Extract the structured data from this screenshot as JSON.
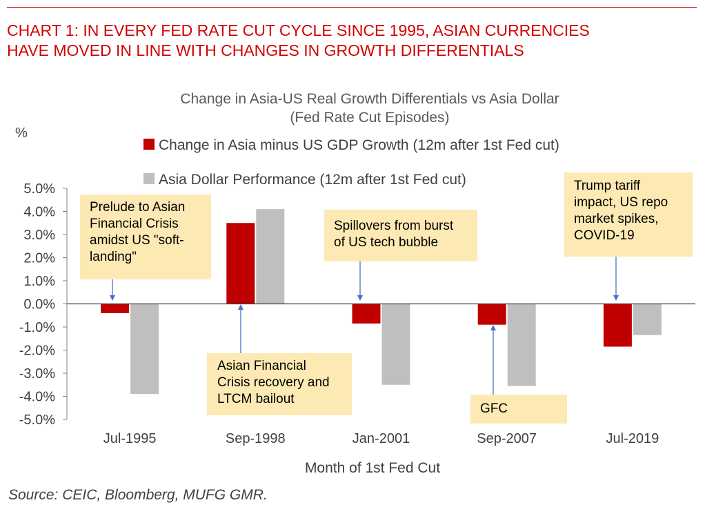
{
  "header": {
    "line1": "CHART 1: IN EVERY FED RATE CUT CYCLE SINCE 1995, ASIAN CURRENCIES",
    "line2": "HAVE MOVED IN LINE WITH CHANGES IN GROWTH DIFFERENTIALS"
  },
  "source": "Source: CEIC, Bloomberg, MUFG GMR.",
  "colors": {
    "headline": "#d40000",
    "series_gdp": "#c00000",
    "series_fx": "#bfbfbf",
    "callout": "#fde9b3"
  },
  "chart_data": {
    "type": "bar",
    "title": "Change in Asia-US Real Growth Differentials vs Asia Dollar",
    "subtitle": "(Fed Rate Cut Episodes)",
    "ylabel": "%",
    "xlabel": "Month of 1st Fed Cut",
    "ylim": [
      -5,
      5
    ],
    "yticks": [
      "5.0%",
      "4.0%",
      "3.0%",
      "2.0%",
      "1.0%",
      "0.0%",
      "-1.0%",
      "-2.0%",
      "-3.0%",
      "-4.0%",
      "-5.0%"
    ],
    "categories": [
      "Jul-1995",
      "Sep-1998",
      "Jan-2001",
      "Sep-2007",
      "Jul-2019"
    ],
    "series": [
      {
        "name": "Change in Asia minus US GDP Growth (12m after 1st Fed cut)",
        "color": "#c00000",
        "values": [
          -0.4,
          3.5,
          -0.85,
          -0.9,
          -1.85
        ]
      },
      {
        "name": "Asia Dollar Performance (12m after 1st Fed cut)",
        "color": "#bfbfbf",
        "values": [
          -3.9,
          4.1,
          -3.5,
          -3.55,
          -1.35
        ]
      }
    ],
    "legend": "top",
    "annotations": [
      {
        "lines": [
          "Prelude to Asian",
          "Financial Crisis",
          "amidst US \"soft-",
          "landing\""
        ],
        "category": "Jul-1995"
      },
      {
        "lines": [
          "Asian Financial",
          "Crisis recovery and",
          "LTCM bailout"
        ],
        "category": "Sep-1998"
      },
      {
        "lines": [
          "Spillovers from burst",
          "of US tech bubble"
        ],
        "category": "Jan-2001"
      },
      {
        "lines": [
          "GFC"
        ],
        "category": "Sep-2007"
      },
      {
        "lines": [
          "Trump tariff",
          "impact, US repo",
          "market spikes,",
          "COVID-19"
        ],
        "category": "Jul-2019"
      }
    ]
  }
}
